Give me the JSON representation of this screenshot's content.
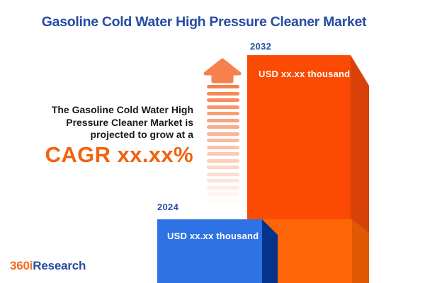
{
  "title": "Gasoline Cold Water High Pressure Cleaner Market",
  "projection": {
    "lines": [
      "The Gasoline Cold Water High",
      "Pressure Cleaner Market is",
      "projected to grow at a"
    ],
    "cagr": "CAGR xx.xx%"
  },
  "chart_data": {
    "type": "bar",
    "title": "Gasoline Cold Water High Pressure Cleaner Market",
    "categories": [
      "2024",
      "2032"
    ],
    "values": [
      "USD xx.xx thousand",
      "USD xx.xx thousand"
    ],
    "value_unit": "USD thousand",
    "growth_note": "CAGR xx.xx%",
    "annotations": [
      "The Gasoline Cold Water High Pressure Cleaner Market is projected to grow at a CAGR xx.xx%"
    ],
    "legend": false,
    "xlabel": "",
    "ylabel": "",
    "bar_colors": [
      "#2F72E4",
      "#FA4A03"
    ]
  },
  "logo": {
    "prefix": "360i",
    "suffix": "Research"
  },
  "colors": {
    "title_blue": "#274CA4",
    "year_label_blue": "#2A4DA7",
    "cagr_orange": "#F2620F",
    "body_text": "#1A1A1A",
    "bar_2024_face": "#2F72E4",
    "bar_2024_side": "#04338C",
    "bar_2032_face": "#FA4A03",
    "bar_2032_side": "#D84208",
    "bar_2032_base_face": "#FD6507",
    "bar_2032_base_side": "#E05803",
    "arrow_orange": "#F6814E",
    "value_text": "#FFFFFF"
  }
}
